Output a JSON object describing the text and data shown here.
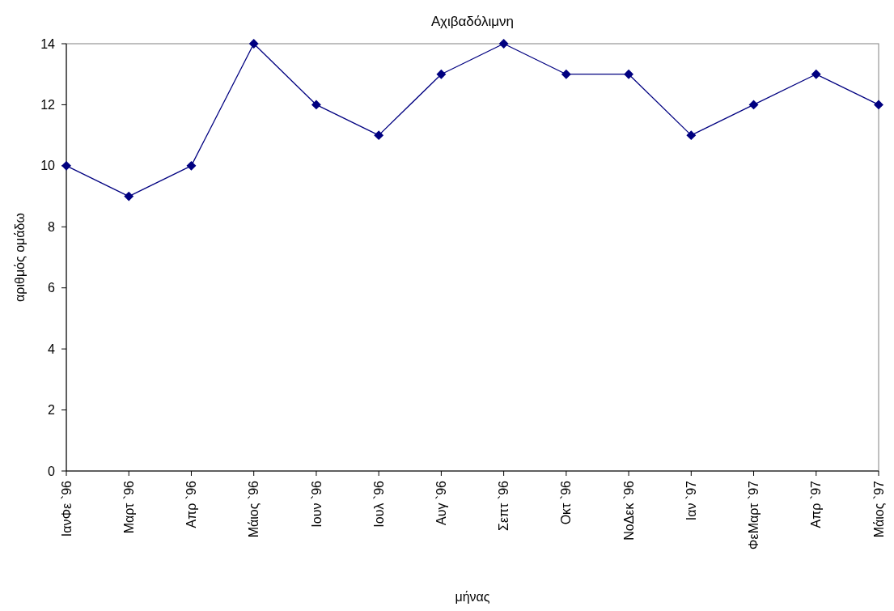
{
  "chart_data": {
    "type": "line",
    "title": "Αχιβαδόλιμνη",
    "xlabel": "μήνας",
    "ylabel": "αριθμός ομάδω",
    "categories": [
      "ΙανΦε `96",
      "Μαρτ `96",
      "Απρ `96",
      "Μάιος `96",
      "Ιουν `96",
      "Ιουλ `96",
      "Αυγ `96",
      "Σεπτ `96",
      "Οκτ `96",
      "ΝοΔεκ `96",
      "Ιαν `97",
      "ΦεΜαρτ `97",
      "Απρ `97",
      "Μάιος `97"
    ],
    "series": [
      {
        "color": "#000080",
        "values": [
          10,
          9,
          10,
          14,
          12,
          11,
          13,
          14,
          13,
          13,
          11,
          12,
          13,
          12
        ]
      }
    ],
    "ylim": [
      0,
      14
    ],
    "yticks": [
      0,
      2,
      4,
      6,
      8,
      10,
      12,
      14
    ],
    "grid": false,
    "marker": "diamond",
    "line_style": "solid"
  }
}
